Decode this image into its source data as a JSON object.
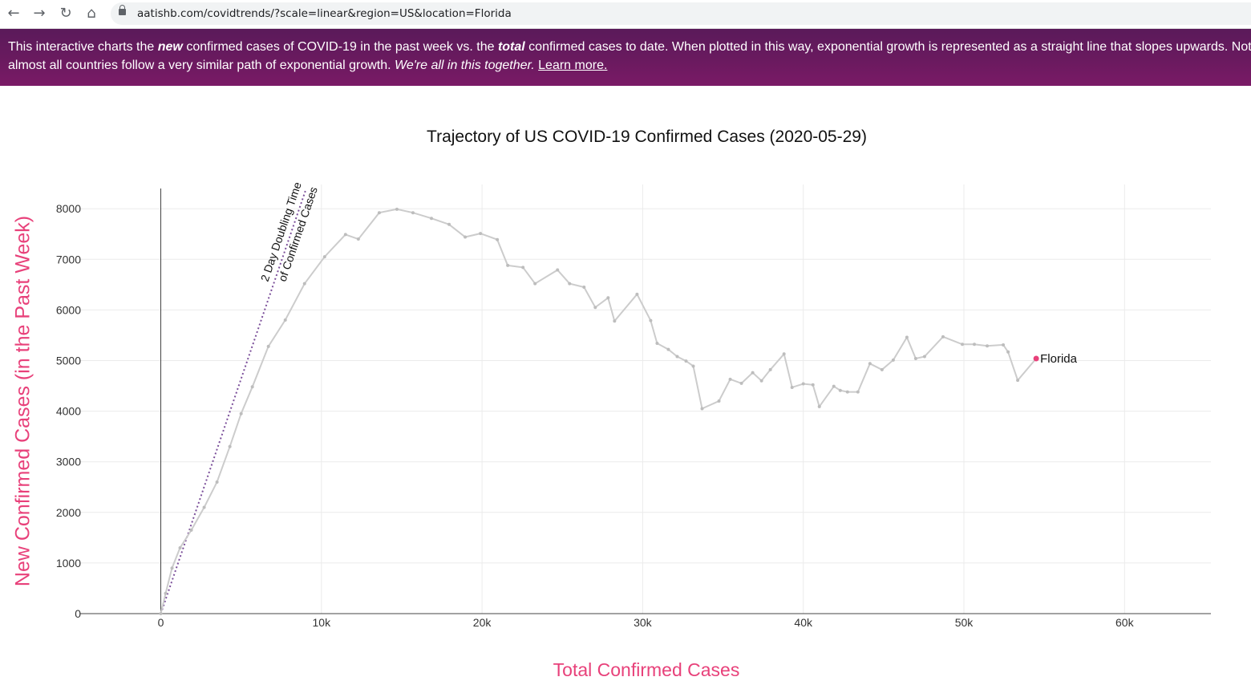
{
  "browser": {
    "url": "aatishb.com/covidtrends/?scale=linear&region=US&location=Florida",
    "back_icon": "←",
    "forward_icon": "→",
    "reload_icon": "↻",
    "home_icon": "⌂"
  },
  "banner": {
    "line1_a": "This interactive charts the ",
    "line1_b": "new",
    "line1_c": " confirmed cases of COVID-19 in the past week vs. the ",
    "line1_d": "total",
    "line1_e": " confirmed cases to date. When plotted in this way, exponential growth is represented as a straight line that slopes upwards. Notice",
    "line2_a": "almost all countries follow a very similar path of exponential growth. ",
    "line2_b": "We're all in this together.",
    "line2_link": "Learn more."
  },
  "colors": {
    "accent": "#e8417a",
    "banner": "#6a1a5f",
    "trajectory": "#cccccc",
    "doubling_line": "#7b4f9a"
  },
  "chart_data": {
    "type": "line",
    "title": "Trajectory of US COVID-19 Confirmed Cases (2020-05-29)",
    "xlabel": "Total Confirmed Cases",
    "ylabel": "New Confirmed Cases (in the Past Week)",
    "xlim": [
      -5000,
      65500
    ],
    "ylim": [
      0,
      8400
    ],
    "x_ticks": [
      0,
      10000,
      20000,
      30000,
      40000,
      50000,
      60000
    ],
    "x_tick_labels": [
      "0",
      "10k",
      "20k",
      "30k",
      "40k",
      "50k",
      "60k"
    ],
    "y_ticks": [
      0,
      1000,
      2000,
      3000,
      4000,
      5000,
      6000,
      7000,
      8000
    ],
    "y_tick_labels": [
      "0",
      "1000",
      "2000",
      "3000",
      "4000",
      "5000",
      "6000",
      "7000",
      "8000"
    ],
    "grid": true,
    "annotation": [
      "2 Day Doubling Time",
      "of Confirmed Cases"
    ],
    "reference_line": {
      "x": [
        0,
        9000
      ],
      "y": [
        0,
        8350
      ]
    },
    "series": [
      {
        "name": "Florida",
        "x": [
          0,
          300,
          700,
          1200,
          1900,
          2700,
          3500,
          4300,
          5000,
          5700,
          6700,
          7750,
          8950,
          10200,
          11500,
          12300,
          13600,
          14700,
          15700,
          16850,
          17950,
          18950,
          19900,
          20950,
          21600,
          22550,
          23300,
          24700,
          25450,
          26350,
          27050,
          27850,
          28250,
          29650,
          30500,
          30900,
          31600,
          32150,
          32700,
          33150,
          33700,
          34750,
          35450,
          36150,
          36850,
          37400,
          37950,
          38800,
          39300,
          40000,
          40600,
          41000,
          41900,
          42300,
          42750,
          43400,
          44150,
          44900,
          45600,
          46450,
          47000,
          47550,
          48700,
          49900,
          50650,
          51450,
          52450,
          52750,
          53350,
          54500
        ],
        "y": [
          0,
          400,
          900,
          1300,
          1650,
          2100,
          2600,
          3300,
          3950,
          4480,
          5280,
          5800,
          6520,
          7050,
          7490,
          7400,
          7920,
          7990,
          7920,
          7810,
          7690,
          7440,
          7510,
          7390,
          6880,
          6840,
          6520,
          6790,
          6520,
          6450,
          6050,
          6240,
          5780,
          6310,
          5790,
          5340,
          5220,
          5080,
          4990,
          4890,
          4050,
          4200,
          4630,
          4550,
          4760,
          4600,
          4820,
          5130,
          4470,
          4540,
          4520,
          4090,
          4490,
          4410,
          4380,
          4380,
          4940,
          4820,
          5010,
          5460,
          5040,
          5080,
          5470,
          5320,
          5320,
          5290,
          5310,
          5170,
          4610,
          5040
        ]
      }
    ]
  }
}
